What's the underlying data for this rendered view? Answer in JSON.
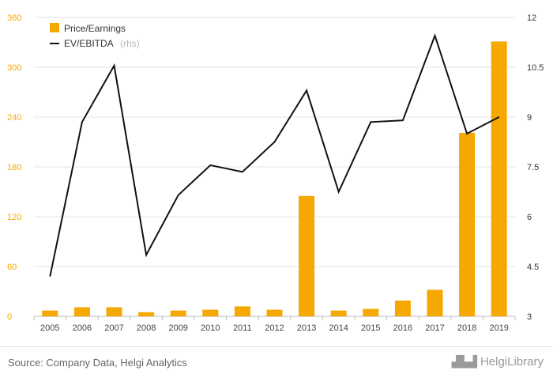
{
  "chart_data": {
    "type": "bar+line",
    "categories": [
      "2005",
      "2006",
      "2007",
      "2008",
      "2009",
      "2010",
      "2011",
      "2012",
      "2013",
      "2014",
      "2015",
      "2016",
      "2017",
      "2018",
      "2019"
    ],
    "series": [
      {
        "name": "Price/Earnings",
        "type": "bar",
        "axis": "left",
        "color": "#f5a800",
        "values": [
          7,
          11,
          11,
          5,
          7,
          8,
          12,
          8,
          145,
          7,
          9,
          19,
          32,
          221,
          331
        ]
      },
      {
        "name": "EV/EBITDA",
        "name_suffix": "(rhs)",
        "type": "line",
        "axis": "right",
        "color": "#111111",
        "values": [
          4.2,
          8.85,
          10.55,
          4.85,
          6.65,
          7.55,
          7.35,
          8.25,
          9.8,
          6.75,
          8.85,
          8.9,
          11.45,
          8.5,
          9.0
        ]
      }
    ],
    "y_left": {
      "ticks": [
        "0",
        "60",
        "120",
        "180",
        "240",
        "300",
        "360"
      ],
      "range": [
        0,
        360
      ]
    },
    "y_right": {
      "ticks": [
        "3",
        "4.5",
        "6",
        "7.5",
        "9",
        "10.5",
        "12"
      ],
      "range": [
        3,
        12
      ]
    },
    "legend_position": "top-left",
    "grid": "horizontal"
  },
  "footer": {
    "source": "Source: Company Data, Helgi Analytics",
    "logo": "HelgiLibrary"
  }
}
